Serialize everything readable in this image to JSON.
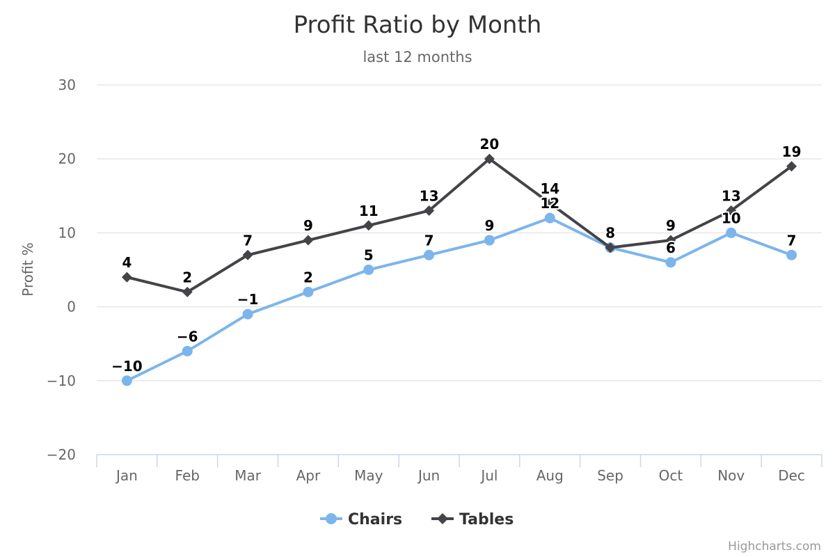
{
  "chart_data": {
    "type": "line",
    "title": "Profit Ratio by Month",
    "subtitle": "last 12 months",
    "ylabel": "Profit %",
    "xlabel": "",
    "categories": [
      "Jan",
      "Feb",
      "Mar",
      "Apr",
      "May",
      "Jun",
      "Jul",
      "Aug",
      "Sep",
      "Oct",
      "Nov",
      "Dec"
    ],
    "ylim": [
      -20,
      30
    ],
    "yticks": [
      -20,
      -10,
      0,
      10,
      20,
      30
    ],
    "grid": true,
    "legend_position": "bottom-center",
    "data_labels": true,
    "series": [
      {
        "name": "Chairs",
        "color": "#7cb5ec",
        "marker": "circle",
        "values": [
          -10,
          -6,
          -1,
          2,
          5,
          7,
          9,
          12,
          8,
          6,
          10,
          7
        ]
      },
      {
        "name": "Tables",
        "color": "#434348",
        "marker": "diamond",
        "values": [
          4,
          2,
          7,
          9,
          11,
          13,
          20,
          14,
          8,
          9,
          13,
          19
        ]
      }
    ]
  },
  "credits": "Highcharts.com"
}
